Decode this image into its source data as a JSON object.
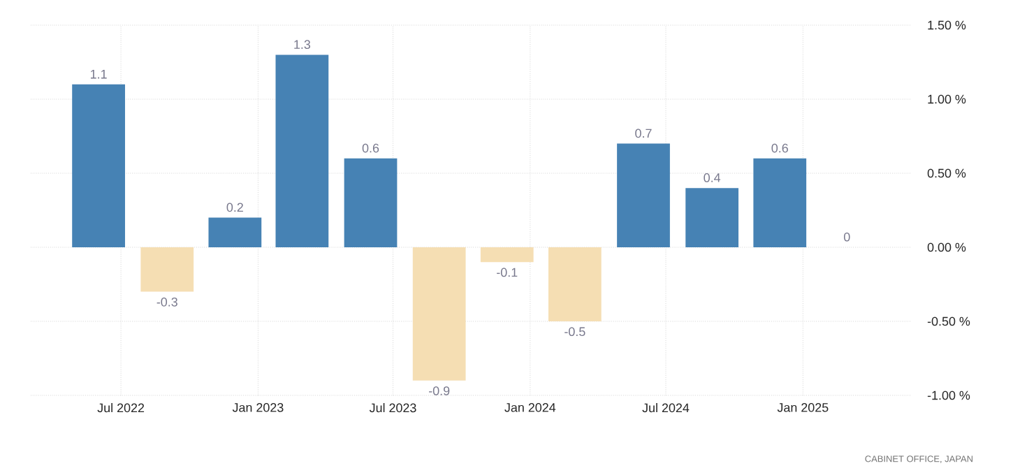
{
  "chart_data": {
    "type": "bar",
    "x": [
      "2022-06",
      "2022-09",
      "2022-12",
      "2023-03",
      "2023-06",
      "2023-09",
      "2023-12",
      "2024-03",
      "2024-06",
      "2024-09",
      "2024-12",
      "2025-03"
    ],
    "values": [
      1.1,
      -0.3,
      0.2,
      1.3,
      0.6,
      -0.9,
      -0.1,
      -0.5,
      0.7,
      0.4,
      0.6,
      0
    ],
    "colors": [
      "#4682b4",
      "#f5deb3",
      "#4682b4",
      "#4682b4",
      "#4682b4",
      "#f5deb3",
      "#f5deb3",
      "#f5deb3",
      "#4682b4",
      "#4682b4",
      "#4682b4",
      "#4682b4"
    ],
    "data_labels": true,
    "xlim": [
      "2022-03-02",
      "2025-05-26"
    ],
    "xticks": [
      {
        "value": "2022-07-01",
        "label": "Jul 2022"
      },
      {
        "value": "2023-01-01",
        "label": "Jan 2023"
      },
      {
        "value": "2023-07-01",
        "label": "Jul 2023"
      },
      {
        "value": "2024-01-01",
        "label": "Jan 2024"
      },
      {
        "value": "2024-07-01",
        "label": "Jul 2024"
      },
      {
        "value": "2025-01-01",
        "label": "Jan 2025"
      }
    ],
    "ylim": [
      -1,
      1.5
    ],
    "yticks": [
      {
        "value": 1.5,
        "label": "1.50 %"
      },
      {
        "value": 1,
        "label": "1.00 %"
      },
      {
        "value": 0.5,
        "label": "0.50 %"
      },
      {
        "value": 0,
        "label": "0.00 %"
      },
      {
        "value": -0.5,
        "label": "-0.50 %"
      },
      {
        "value": -1,
        "label": "-1.00 %"
      }
    ],
    "grid": true,
    "annotations": [
      "CABINET OFFICE, JAPAN"
    ]
  }
}
